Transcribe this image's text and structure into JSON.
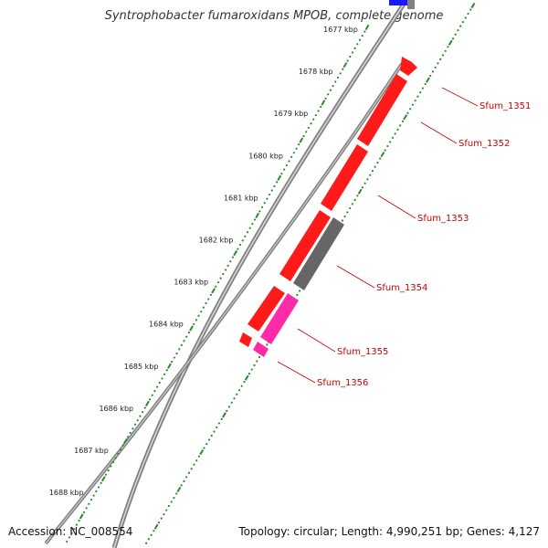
{
  "title": "Syntrophobacter fumaroxidans MPOB, complete genome",
  "footer": {
    "accession": "Accession: NC_008554",
    "stats": "Topology: circular; Length: 4,990,251 bp; Genes: 4,127"
  },
  "scale_labels": [
    "1677 kbp",
    "1678 kbp",
    "1679 kbp",
    "1680 kbp",
    "1681 kbp",
    "1682 kbp",
    "1683 kbp",
    "1684 kbp",
    "1685 kbp",
    "1686 kbp",
    "1687 kbp",
    "1688 kbp"
  ],
  "gene_labels": [
    "Sfum_1351",
    "Sfum_1352",
    "Sfum_1353",
    "Sfum_1354",
    "Sfum_1355",
    "Sfum_1356"
  ],
  "colors": {
    "backbone": "#808080",
    "scale": "#2a8a2a",
    "forward_gene": "#ff1a1a",
    "other_gene": "#666666",
    "rna_gene": "#ff2aa8",
    "blue_feature": "#1a1aff",
    "label": "#cc0000"
  }
}
